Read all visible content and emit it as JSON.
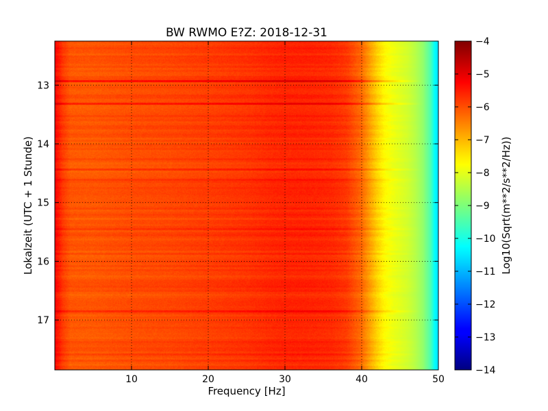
{
  "chart_data": {
    "type": "heatmap",
    "title": "BW RWMO E?Z: 2018-12-31",
    "xlabel": "Frequency [Hz]",
    "ylabel": "Lokalzeit (UTC + 1 Stunde)",
    "colorbar_label": "Log10(Sqrt(m**2/s**2/Hz))",
    "colormap": "jet",
    "xlim": [
      0,
      50
    ],
    "ylim": [
      12.25,
      17.85
    ],
    "y_inverted": true,
    "grid": true,
    "xticks": [
      10,
      20,
      30,
      40,
      50
    ],
    "xtick_labels": [
      "10",
      "20",
      "30",
      "40",
      "50"
    ],
    "yticks": [
      13,
      14,
      15,
      16,
      17
    ],
    "ytick_labels": [
      "13",
      "14",
      "15",
      "16",
      "17"
    ],
    "colorbar_range": [
      -14,
      -4
    ],
    "colorbar_ticks": [
      -4,
      -5,
      -6,
      -7,
      -8,
      -9,
      -10,
      -11,
      -12,
      -13,
      -14
    ],
    "colorbar_tick_labels": [
      "−4",
      "−5",
      "−6",
      "−7",
      "−8",
      "−9",
      "−10",
      "−11",
      "−12",
      "−13",
      "−14"
    ],
    "spectrum_profile": {
      "frequency_hz": [
        0,
        0.5,
        1,
        2,
        5,
        10,
        15,
        20,
        25,
        28,
        30,
        33,
        36,
        38,
        40,
        41,
        42,
        43,
        44,
        45,
        46,
        47,
        48,
        49,
        49.5,
        50
      ],
      "log10_amplitude": [
        -5.3,
        -5.5,
        -5.8,
        -6.1,
        -6.1,
        -6.0,
        -5.95,
        -5.85,
        -5.75,
        -5.65,
        -5.6,
        -5.6,
        -5.65,
        -5.8,
        -6.3,
        -6.8,
        -7.3,
        -7.7,
        -7.9,
        -8.05,
        -8.2,
        -8.45,
        -8.8,
        -9.5,
        -10.2,
        -10.6
      ]
    },
    "bands": [
      {
        "time": 12.95,
        "log10_offset": 0.6
      },
      {
        "time": 13.3,
        "log10_offset": 0.45
      },
      {
        "time": 14.45,
        "log10_offset": 0.25
      },
      {
        "time": 14.6,
        "log10_offset": 0.3
      },
      {
        "time": 14.85,
        "log10_offset": 0.2
      },
      {
        "time": 15.45,
        "log10_offset": 0.2
      },
      {
        "time": 16.85,
        "log10_offset": 0.3
      },
      {
        "time": 17.6,
        "log10_offset": 0.2
      }
    ]
  }
}
